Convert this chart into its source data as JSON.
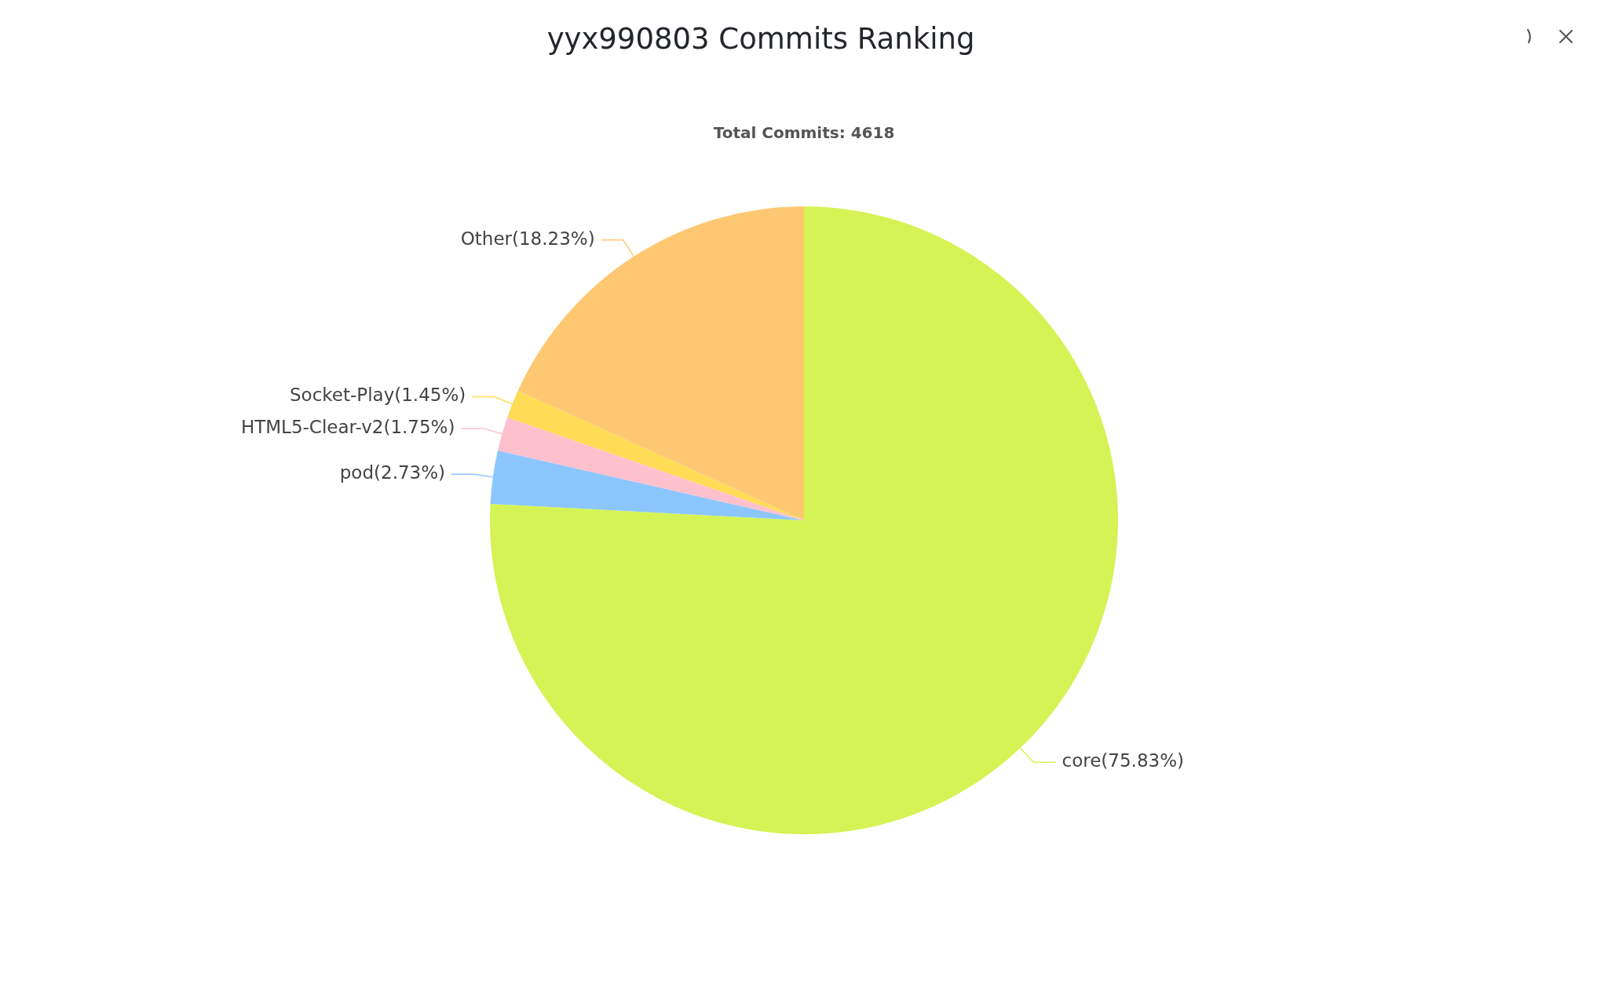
{
  "chart_data": {
    "type": "pie",
    "title": "yyx990803 Commits Ranking",
    "subtitle": "Total Commits: 4618",
    "categories": [
      "core",
      "pod",
      "HTML5-Clear-v2",
      "Socket-Play",
      "Other"
    ],
    "values": [
      75.83,
      2.73,
      1.75,
      1.45,
      18.23
    ],
    "colors": [
      "#d5f354",
      "#8cc6ff",
      "#ffc0cd",
      "#ffdc55",
      "#fec872"
    ],
    "value_labels": [
      "(75.83%)",
      "(2.73%)",
      "(1.75%)",
      "(1.45%)",
      "(18.23%)"
    ]
  }
}
